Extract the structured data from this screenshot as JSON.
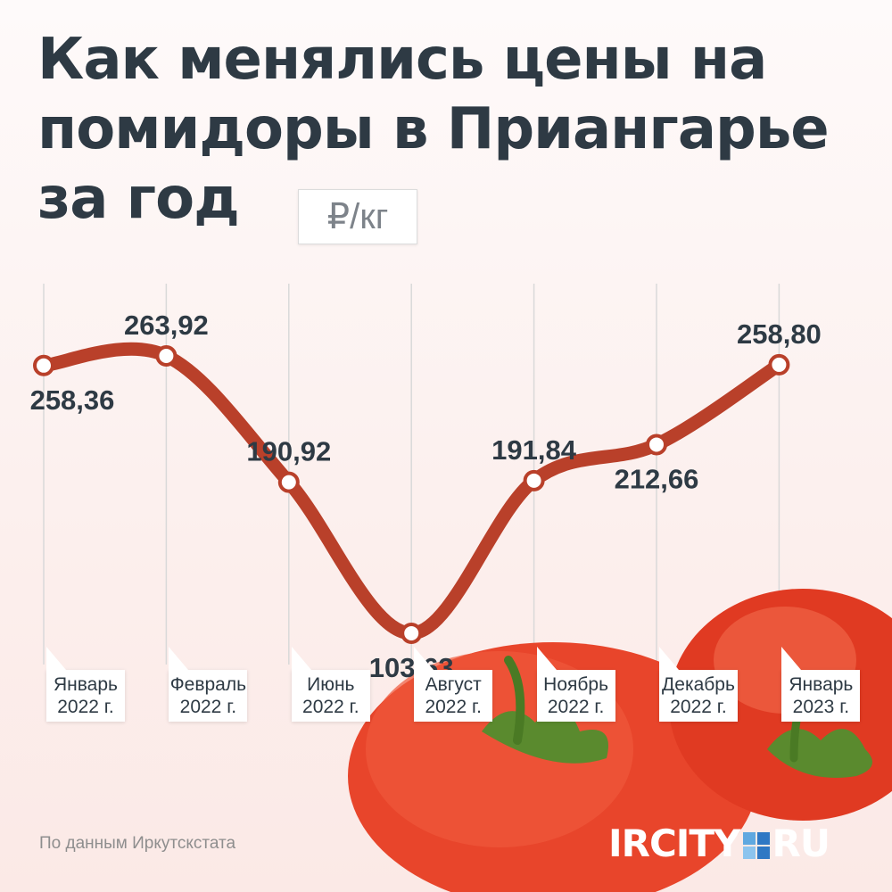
{
  "title": "Как менялись цены на помидоры в Приангарье за год",
  "unit": "₽/кг",
  "source": "По данным Иркутскстата",
  "logo": {
    "left": "IRCITY",
    "right": "RU",
    "square_colors": [
      "#5fa8e0",
      "#2f78c4",
      "#8cc4ee",
      "#2f78c4"
    ]
  },
  "colors": {
    "line": "#b9402a",
    "title": "#2e3a44",
    "marker_fill": "#ffffff",
    "tomato": "#e8452b"
  },
  "chart_data": {
    "type": "line",
    "title": "Как менялись цены на помидоры в Приангарье за год",
    "ylabel": "₽/кг",
    "xlabel": "",
    "categories": [
      [
        "Январь",
        "2022 г."
      ],
      [
        "Февраль",
        "2022 г."
      ],
      [
        "Июнь",
        "2022 г."
      ],
      [
        "Август",
        "2022 г."
      ],
      [
        "Ноябрь",
        "2022 г."
      ],
      [
        "Декабрь",
        "2022 г."
      ],
      [
        "Январь",
        "2023 г."
      ]
    ],
    "values": [
      258.36,
      263.92,
      190.92,
      103.63,
      191.84,
      212.66,
      258.8
    ],
    "labels": [
      "258,36",
      "263,92",
      "190,92",
      "103,63",
      "191,84",
      "212,66",
      "258,80"
    ],
    "label_positions": [
      "below",
      "above",
      "above",
      "below",
      "above",
      "below",
      "above"
    ],
    "ylim": [
      0,
      300
    ],
    "grid": "vertical",
    "legend": "none"
  }
}
